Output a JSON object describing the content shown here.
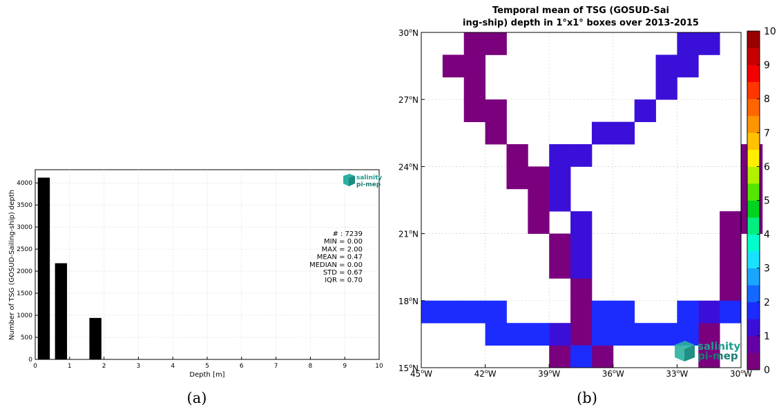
{
  "chart_data": [
    {
      "type": "bar",
      "panel_label": "(a)",
      "x": [
        0.25,
        0.75,
        1.75
      ],
      "values": [
        4120,
        2180,
        940
      ],
      "bar_width": 0.35,
      "xlabel": "Depth [m]",
      "ylabel": "Number of TSG (GOSUD-Sailing-ship) depth",
      "xlim": [
        0,
        10
      ],
      "ylim": [
        0,
        4300
      ],
      "xticks": [
        "0",
        "1",
        "2",
        "3",
        "4",
        "5",
        "6",
        "7",
        "8",
        "9",
        "10"
      ],
      "yticks": [
        "0",
        "500",
        "1000",
        "1500",
        "2000",
        "2500",
        "3000",
        "3500",
        "4000"
      ],
      "grid": true,
      "stats": [
        "# : 7239",
        "MIN = 0.00",
        "MAX =  2.00",
        "MEAN = 0.47",
        "MEDIAN = 0.00",
        "STD = 0.67",
        "IQR = 0.70"
      ],
      "logo": {
        "line1": "salinity",
        "line2": "pi-mep"
      }
    },
    {
      "type": "heatmap",
      "panel_label": "(b)",
      "title_lines": [
        "Temporal mean of TSG (GOSUD-Sai",
        "ing-ship) depth in 1°x1° boxes over 2013-2015"
      ],
      "xlim": [
        -45,
        -30
      ],
      "ylim": [
        15,
        30
      ],
      "xticks": [
        {
          "value": -45,
          "label": "45°W"
        },
        {
          "value": -42,
          "label": "42°W"
        },
        {
          "value": -39,
          "label": "39°W"
        },
        {
          "value": -36,
          "label": "36°W"
        },
        {
          "value": -33,
          "label": "33°W"
        },
        {
          "value": -30,
          "label": "30°W"
        }
      ],
      "yticks": [
        {
          "value": 15,
          "label": "15°N"
        },
        {
          "value": 18,
          "label": "18°N"
        },
        {
          "value": 21,
          "label": "21°N"
        },
        {
          "value": 24,
          "label": "24°N"
        },
        {
          "value": 27,
          "label": "27°N"
        },
        {
          "value": 30,
          "label": "30°N"
        }
      ],
      "grid": true,
      "colorbar": {
        "vmin": 0,
        "vmax": 10,
        "ticks": [
          "0",
          "1",
          "2",
          "3",
          "4",
          "5",
          "6",
          "7",
          "8",
          "9",
          "10"
        ],
        "colors": [
          "#7a007d",
          "#6600a6",
          "#3a10d9",
          "#1c2cff",
          "#1468ff",
          "#1aa6ff",
          "#19e2ff",
          "#00ffcc",
          "#00ef7e",
          "#00d41e",
          "#54e600",
          "#b2f200",
          "#ffef00",
          "#ffc200",
          "#ff9500",
          "#ff6600",
          "#ff3600",
          "#f30000",
          "#c80000",
          "#9b0000"
        ]
      },
      "cells": [
        {
          "lon": -43,
          "lat": 29,
          "value": 0.3
        },
        {
          "lon": -42,
          "lat": 29,
          "value": 0.3
        },
        {
          "lon": -44,
          "lat": 28,
          "value": 0.3
        },
        {
          "lon": -43,
          "lat": 28,
          "value": 0.3
        },
        {
          "lon": -43,
          "lat": 27,
          "value": 0.3
        },
        {
          "lon": -43,
          "lat": 26,
          "value": 0.3
        },
        {
          "lon": -42,
          "lat": 26,
          "value": 0.3
        },
        {
          "lon": -42,
          "lat": 25,
          "value": 0.3
        },
        {
          "lon": -41,
          "lat": 24,
          "value": 0.3
        },
        {
          "lon": -41,
          "lat": 23,
          "value": 0.3
        },
        {
          "lon": -40,
          "lat": 23,
          "value": 0.3
        },
        {
          "lon": -40,
          "lat": 22,
          "value": 0.3
        },
        {
          "lon": -40,
          "lat": 21,
          "value": 0.3
        },
        {
          "lon": -39,
          "lat": 19,
          "value": 0.3
        },
        {
          "lon": -39,
          "lat": 20,
          "value": 0.3
        },
        {
          "lon": -38,
          "lat": 18,
          "value": 0.3
        },
        {
          "lon": -38,
          "lat": 17,
          "value": 0.3
        },
        {
          "lon": -38,
          "lat": 16,
          "value": 0.3
        },
        {
          "lon": -39,
          "lat": 15,
          "value": 0.3
        },
        {
          "lon": -37,
          "lat": 15,
          "value": 0.3
        },
        {
          "lon": -32,
          "lat": 15,
          "value": 0.3
        },
        {
          "lon": -32,
          "lat": 16,
          "value": 0.3
        },
        {
          "lon": -31,
          "lat": 18,
          "value": 0.3
        },
        {
          "lon": -31,
          "lat": 19,
          "value": 0.3
        },
        {
          "lon": -31,
          "lat": 20,
          "value": 0.3
        },
        {
          "lon": -31,
          "lat": 21,
          "value": 0.3
        },
        {
          "lon": -30,
          "lat": 21,
          "value": 0.3
        },
        {
          "lon": -30,
          "lat": 22,
          "value": 0.3
        },
        {
          "lon": -30,
          "lat": 23,
          "value": 0.3
        },
        {
          "lon": -30,
          "lat": 24,
          "value": 0.3
        },
        {
          "lon": -33,
          "lat": 29,
          "value": 1.0
        },
        {
          "lon": -32,
          "lat": 29,
          "value": 1.0
        },
        {
          "lon": -34,
          "lat": 28,
          "value": 1.0
        },
        {
          "lon": -33,
          "lat": 28,
          "value": 1.0
        },
        {
          "lon": -34,
          "lat": 27,
          "value": 1.0
        },
        {
          "lon": -35,
          "lat": 26,
          "value": 1.0
        },
        {
          "lon": -37,
          "lat": 25,
          "value": 1.0
        },
        {
          "lon": -36,
          "lat": 25,
          "value": 1.0
        },
        {
          "lon": -39,
          "lat": 24,
          "value": 1.0
        },
        {
          "lon": -38,
          "lat": 24,
          "value": 1.0
        },
        {
          "lon": -39,
          "lat": 23,
          "value": 1.0
        },
        {
          "lon": -39,
          "lat": 22,
          "value": 1.0
        },
        {
          "lon": -38,
          "lat": 21,
          "value": 1.0
        },
        {
          "lon": -38,
          "lat": 20,
          "value": 1.0
        },
        {
          "lon": -38,
          "lat": 19,
          "value": 1.0
        },
        {
          "lon": -39,
          "lat": 16,
          "value": 1.0
        },
        {
          "lon": -32,
          "lat": 17,
          "value": 1.4
        },
        {
          "lon": -45,
          "lat": 17,
          "value": 1.6
        },
        {
          "lon": -44,
          "lat": 17,
          "value": 1.6
        },
        {
          "lon": -43,
          "lat": 17,
          "value": 1.6
        },
        {
          "lon": -42,
          "lat": 17,
          "value": 1.6
        },
        {
          "lon": -42,
          "lat": 16,
          "value": 1.6
        },
        {
          "lon": -41,
          "lat": 16,
          "value": 1.6
        },
        {
          "lon": -40,
          "lat": 16,
          "value": 1.6
        },
        {
          "lon": -37,
          "lat": 17,
          "value": 1.6
        },
        {
          "lon": -36,
          "lat": 17,
          "value": 1.6
        },
        {
          "lon": -37,
          "lat": 16,
          "value": 1.6
        },
        {
          "lon": -36,
          "lat": 16,
          "value": 1.6
        },
        {
          "lon": -35,
          "lat": 16,
          "value": 1.6
        },
        {
          "lon": -34,
          "lat": 16,
          "value": 1.6
        },
        {
          "lon": -33,
          "lat": 16,
          "value": 1.6
        },
        {
          "lon": -33,
          "lat": 17,
          "value": 1.6
        },
        {
          "lon": -31,
          "lat": 17,
          "value": 1.6
        },
        {
          "lon": -38,
          "lat": 15,
          "value": 1.8
        }
      ],
      "logo": {
        "line1": "salinity",
        "line2": "pi-mep"
      }
    }
  ]
}
